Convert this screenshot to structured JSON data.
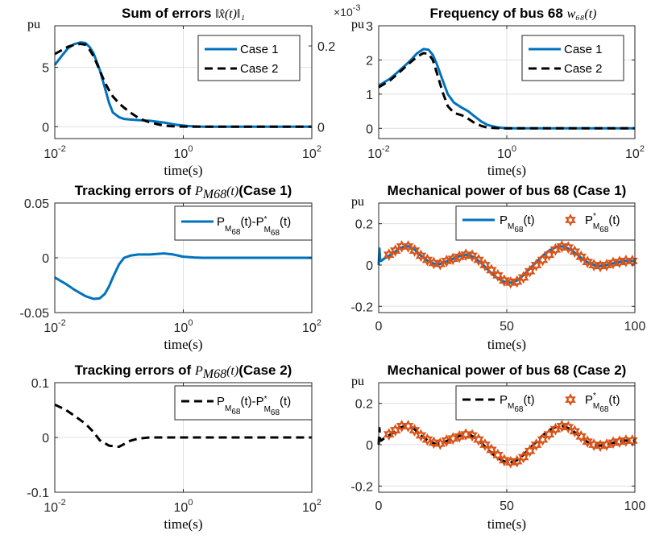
{
  "chart_data": [
    {
      "type": "line",
      "title": "Sum of errors",
      "title_math": "‖x̂(t)‖₁",
      "xlabel": "time(s)",
      "ylabel": "pu",
      "xscale": "log",
      "xlim": [
        0.01,
        100
      ],
      "xticks": [
        {
          "base": "10",
          "exp": "-2"
        },
        {
          "base": "10",
          "exp": "0"
        },
        {
          "base": "10",
          "exp": "2"
        }
      ],
      "ylim": [
        -1,
        8.5
      ],
      "yticks": [
        "0",
        "5"
      ],
      "yticks_values": [
        0,
        5
      ],
      "right_ylim": [
        -0.0294,
        0.25
      ],
      "right_yticks": [
        "0",
        "0.2"
      ],
      "right_yticks_values": [
        0,
        0.2
      ],
      "grid": true,
      "legend_position": "top-right",
      "series": [
        {
          "name": "Case 1",
          "style": "solid",
          "color": "#0072bd",
          "axis": "left",
          "x": [
            0.01,
            0.013,
            0.016,
            0.02,
            0.025,
            0.03,
            0.035,
            0.04,
            0.05,
            0.06,
            0.07,
            0.08,
            0.1,
            0.12,
            0.15,
            0.2,
            0.3,
            0.5,
            0.8,
            1.2,
            2,
            5,
            10,
            30,
            100
          ],
          "y": [
            5.2,
            6.0,
            6.6,
            6.95,
            7.1,
            7.05,
            6.7,
            6.2,
            4.8,
            3.3,
            2.0,
            1.2,
            0.8,
            0.65,
            0.6,
            0.55,
            0.5,
            0.35,
            0.15,
            0.05,
            0,
            0,
            0,
            0,
            0
          ]
        },
        {
          "name": "Case 2",
          "style": "dashed",
          "color": "#000000",
          "axis": "right",
          "x": [
            0.01,
            0.013,
            0.016,
            0.02,
            0.025,
            0.03,
            0.035,
            0.04,
            0.05,
            0.06,
            0.07,
            0.08,
            0.1,
            0.12,
            0.15,
            0.2,
            0.25,
            0.3,
            0.4,
            0.5,
            0.6,
            0.7,
            1.0,
            1.5,
            2,
            5,
            10,
            30,
            100
          ],
          "y": [
            0.18,
            0.19,
            0.198,
            0.203,
            0.205,
            0.203,
            0.19,
            0.175,
            0.14,
            0.11,
            0.09,
            0.075,
            0.058,
            0.047,
            0.035,
            0.022,
            0.015,
            0.011,
            0.006,
            0.003,
            0.0015,
            0.001,
            0.0003,
            0,
            0,
            0,
            0,
            0,
            0
          ]
        }
      ]
    },
    {
      "type": "line",
      "title": "Frequency of bus 68",
      "title_math": "w₆₈(t)",
      "multiplier": {
        "base": "×10",
        "exp": "-3"
      },
      "xlabel": "time(s)",
      "ylabel": "pu",
      "xscale": "log",
      "xlim": [
        0.01,
        100
      ],
      "xticks": [
        {
          "base": "10",
          "exp": "-2"
        },
        {
          "base": "10",
          "exp": "0"
        },
        {
          "base": "10",
          "exp": "2"
        }
      ],
      "ylim": [
        -0.3,
        3
      ],
      "yticks": [
        "0",
        "1",
        "2",
        "3"
      ],
      "yticks_values": [
        0,
        1,
        2,
        3
      ],
      "grid": true,
      "legend_position": "top-right",
      "series": [
        {
          "name": "Case 1",
          "style": "solid",
          "color": "#0072bd",
          "x": [
            0.01,
            0.015,
            0.02,
            0.03,
            0.04,
            0.05,
            0.06,
            0.07,
            0.08,
            0.1,
            0.12,
            0.15,
            0.2,
            0.25,
            0.3,
            0.4,
            0.5,
            0.7,
            1.0,
            1.5,
            2,
            5,
            10,
            30,
            100
          ],
          "y": [
            1.25,
            1.45,
            1.65,
            1.95,
            2.2,
            2.32,
            2.3,
            2.15,
            1.9,
            1.4,
            1.0,
            0.75,
            0.6,
            0.5,
            0.38,
            0.2,
            0.1,
            0.03,
            0,
            0,
            0,
            0,
            0,
            0,
            0
          ]
        },
        {
          "name": "Case 2",
          "style": "dashed",
          "color": "#000000",
          "x": [
            0.01,
            0.015,
            0.02,
            0.03,
            0.04,
            0.05,
            0.06,
            0.07,
            0.08,
            0.1,
            0.12,
            0.15,
            0.2,
            0.25,
            0.3,
            0.4,
            0.5,
            0.7,
            1.0,
            1.5,
            2,
            5,
            10,
            30,
            100
          ],
          "y": [
            1.2,
            1.4,
            1.6,
            1.9,
            2.1,
            2.2,
            2.18,
            2.0,
            1.65,
            1.05,
            0.65,
            0.45,
            0.38,
            0.28,
            0.18,
            0.07,
            0.02,
            0.005,
            0,
            0,
            0,
            0,
            0,
            0,
            0
          ]
        }
      ]
    },
    {
      "type": "line",
      "title": "Tracking errors of",
      "title_math": "P_M68(t)",
      "title_suffix": "(Case 1)",
      "xlabel": "time(s)",
      "xscale": "log",
      "xlim": [
        0.01,
        100
      ],
      "xticks": [
        {
          "base": "10",
          "exp": "-2"
        },
        {
          "base": "10",
          "exp": "0"
        },
        {
          "base": "10",
          "exp": "2"
        }
      ],
      "ylim": [
        -0.05,
        0.05
      ],
      "yticks": [
        "-0.05",
        "0",
        "0.05"
      ],
      "yticks_values": [
        -0.05,
        0,
        0.05
      ],
      "grid": true,
      "legend_position": "top-right",
      "series": [
        {
          "name": "P_M68(t)-P*_M68(t)",
          "style": "solid",
          "color": "#0072bd",
          "x": [
            0.01,
            0.015,
            0.02,
            0.03,
            0.04,
            0.05,
            0.06,
            0.07,
            0.08,
            0.1,
            0.12,
            0.15,
            0.2,
            0.3,
            0.5,
            0.7,
            1.0,
            1.5,
            2,
            5,
            10,
            30,
            100
          ],
          "y": [
            -0.018,
            -0.024,
            -0.029,
            -0.035,
            -0.0375,
            -0.037,
            -0.033,
            -0.026,
            -0.018,
            -0.006,
            0.0,
            0.002,
            0.003,
            0.003,
            0.004,
            0.003,
            0.001,
            0.0003,
            0,
            0,
            0,
            0,
            0
          ]
        }
      ]
    },
    {
      "type": "line",
      "title": "Mechanical power of bus 68 (Case 1)",
      "xlabel": "time(s)",
      "ylabel": "pu",
      "xscale": "linear",
      "xlim": [
        0,
        100
      ],
      "xticks": [
        "0",
        "50",
        "100"
      ],
      "xticks_values": [
        0,
        50,
        100
      ],
      "ylim": [
        -0.23,
        0.3
      ],
      "yticks": [
        "-0.2",
        "0",
        "0.2"
      ],
      "yticks_values": [
        -0.2,
        0,
        0.2
      ],
      "grid": true,
      "legend_position": "top",
      "series": [
        {
          "name": "P_M68(t)",
          "style": "solid",
          "color": "#0072bd",
          "x": [
            0,
            0.3,
            0.6,
            1,
            2,
            4,
            6,
            8,
            10,
            12,
            14,
            16,
            18,
            20,
            22,
            24,
            26,
            28,
            30,
            32,
            34,
            36,
            38,
            40,
            42,
            44,
            46,
            48,
            50,
            52,
            54,
            56,
            58,
            60,
            62,
            64,
            66,
            68,
            70,
            72,
            74,
            76,
            78,
            80,
            82,
            84,
            86,
            88,
            90,
            92,
            94,
            96,
            98,
            100
          ],
          "y": [
            0.0,
            0.08,
            0.02,
            0.02,
            0.03,
            0.045,
            0.06,
            0.08,
            0.09,
            0.09,
            0.075,
            0.05,
            0.03,
            0.015,
            0.005,
            0.005,
            0.015,
            0.025,
            0.035,
            0.045,
            0.05,
            0.045,
            0.03,
            0.01,
            -0.015,
            -0.04,
            -0.06,
            -0.075,
            -0.085,
            -0.085,
            -0.075,
            -0.055,
            -0.03,
            -0.005,
            0.02,
            0.045,
            0.065,
            0.08,
            0.09,
            0.09,
            0.08,
            0.065,
            0.045,
            0.025,
            0.01,
            0.0,
            -0.005,
            -0.003,
            0.003,
            0.01,
            0.015,
            0.02,
            0.02,
            0.02
          ]
        },
        {
          "name": "P*_M68(t)",
          "style": "markers",
          "marker": "hexagram",
          "color": "#d95319",
          "x": [
            4,
            6.5,
            9,
            11.5,
            14,
            16.5,
            19,
            21.5,
            24,
            26.5,
            29,
            31.5,
            34,
            36.5,
            39,
            41.5,
            44,
            46.5,
            49,
            51.5,
            54,
            56.5,
            59,
            61.5,
            64,
            66.5,
            69,
            71.5,
            74,
            76.5,
            79,
            81.5,
            84,
            86.5,
            89,
            91.5,
            94,
            96.5,
            99
          ],
          "y": [
            0.05,
            0.07,
            0.09,
            0.09,
            0.07,
            0.045,
            0.025,
            0.01,
            0.005,
            0.02,
            0.03,
            0.04,
            0.05,
            0.045,
            0.025,
            0.0,
            -0.025,
            -0.05,
            -0.075,
            -0.085,
            -0.08,
            -0.06,
            -0.03,
            0.0,
            0.025,
            0.05,
            0.075,
            0.09,
            0.085,
            0.065,
            0.04,
            0.015,
            0.0,
            -0.005,
            0.0,
            0.01,
            0.015,
            0.02,
            0.02
          ]
        }
      ]
    },
    {
      "type": "line",
      "title": "Tracking errors of",
      "title_math": "P_M68(t)",
      "title_suffix": "(Case 2)",
      "xlabel": "time(s)",
      "xscale": "log",
      "xlim": [
        0.01,
        100
      ],
      "xticks": [
        {
          "base": "10",
          "exp": "-2"
        },
        {
          "base": "10",
          "exp": "0"
        },
        {
          "base": "10",
          "exp": "2"
        }
      ],
      "ylim": [
        -0.1,
        0.1
      ],
      "yticks": [
        "-0.1",
        "0",
        "0.1"
      ],
      "yticks_values": [
        -0.1,
        0,
        0.1
      ],
      "grid": true,
      "legend_position": "top-right",
      "series": [
        {
          "name": "P_M68(t)-P*_M68(t)",
          "style": "dashed",
          "color": "#000000",
          "x": [
            0.01,
            0.015,
            0.02,
            0.03,
            0.04,
            0.05,
            0.07,
            0.1,
            0.12,
            0.15,
            0.2,
            0.3,
            0.5,
            1.0,
            2,
            5,
            10,
            30,
            100
          ],
          "y": [
            0.06,
            0.05,
            0.04,
            0.025,
            0.01,
            -0.005,
            -0.015,
            -0.017,
            -0.012,
            -0.006,
            -0.002,
            0.0,
            0.0,
            0.0,
            0.0,
            0.0,
            0.0,
            0.0,
            0.0
          ]
        }
      ]
    },
    {
      "type": "line",
      "title": "Mechanical power of bus 68 (Case 2)",
      "xlabel": "time(s)",
      "ylabel": "pu",
      "xscale": "linear",
      "xlim": [
        0,
        100
      ],
      "xticks": [
        "0",
        "50",
        "100"
      ],
      "xticks_values": [
        0,
        50,
        100
      ],
      "ylim": [
        -0.23,
        0.3
      ],
      "yticks": [
        "-0.2",
        "0",
        "0.2"
      ],
      "yticks_values": [
        -0.2,
        0,
        0.2
      ],
      "grid": true,
      "legend_position": "top",
      "series": [
        {
          "name": "P_M68(t)",
          "style": "dashed",
          "color": "#000000",
          "x": [
            0,
            0.3,
            0.6,
            1,
            2,
            4,
            6,
            8,
            10,
            12,
            14,
            16,
            18,
            20,
            22,
            24,
            26,
            28,
            30,
            32,
            34,
            36,
            38,
            40,
            42,
            44,
            46,
            48,
            50,
            52,
            54,
            56,
            58,
            60,
            62,
            64,
            66,
            68,
            70,
            72,
            74,
            76,
            78,
            80,
            82,
            84,
            86,
            88,
            90,
            92,
            94,
            96,
            98,
            100
          ],
          "y": [
            0.0,
            0.08,
            0.02,
            0.02,
            0.03,
            0.045,
            0.06,
            0.08,
            0.09,
            0.09,
            0.075,
            0.05,
            0.03,
            0.015,
            0.005,
            0.005,
            0.015,
            0.025,
            0.035,
            0.045,
            0.05,
            0.045,
            0.03,
            0.01,
            -0.015,
            -0.04,
            -0.06,
            -0.075,
            -0.085,
            -0.085,
            -0.075,
            -0.055,
            -0.03,
            -0.005,
            0.02,
            0.045,
            0.065,
            0.08,
            0.09,
            0.09,
            0.08,
            0.065,
            0.045,
            0.025,
            0.01,
            0.0,
            -0.005,
            -0.003,
            0.003,
            0.01,
            0.015,
            0.02,
            0.02,
            0.02
          ]
        },
        {
          "name": "P*_M68(t)",
          "style": "markers",
          "marker": "hexagram",
          "color": "#d95319",
          "x": [
            4,
            6.5,
            9,
            11.5,
            14,
            16.5,
            19,
            21.5,
            24,
            26.5,
            29,
            31.5,
            34,
            36.5,
            39,
            41.5,
            44,
            46.5,
            49,
            51.5,
            54,
            56.5,
            59,
            61.5,
            64,
            66.5,
            69,
            71.5,
            74,
            76.5,
            79,
            81.5,
            84,
            86.5,
            89,
            91.5,
            94,
            96.5,
            99
          ],
          "y": [
            0.05,
            0.07,
            0.09,
            0.09,
            0.07,
            0.045,
            0.025,
            0.01,
            0.005,
            0.02,
            0.03,
            0.04,
            0.05,
            0.045,
            0.025,
            0.0,
            -0.025,
            -0.05,
            -0.075,
            -0.085,
            -0.08,
            -0.06,
            -0.03,
            0.0,
            0.025,
            0.05,
            0.075,
            0.09,
            0.085,
            0.065,
            0.04,
            0.015,
            0.0,
            -0.005,
            0.0,
            0.01,
            0.015,
            0.02,
            0.02
          ]
        }
      ]
    }
  ]
}
